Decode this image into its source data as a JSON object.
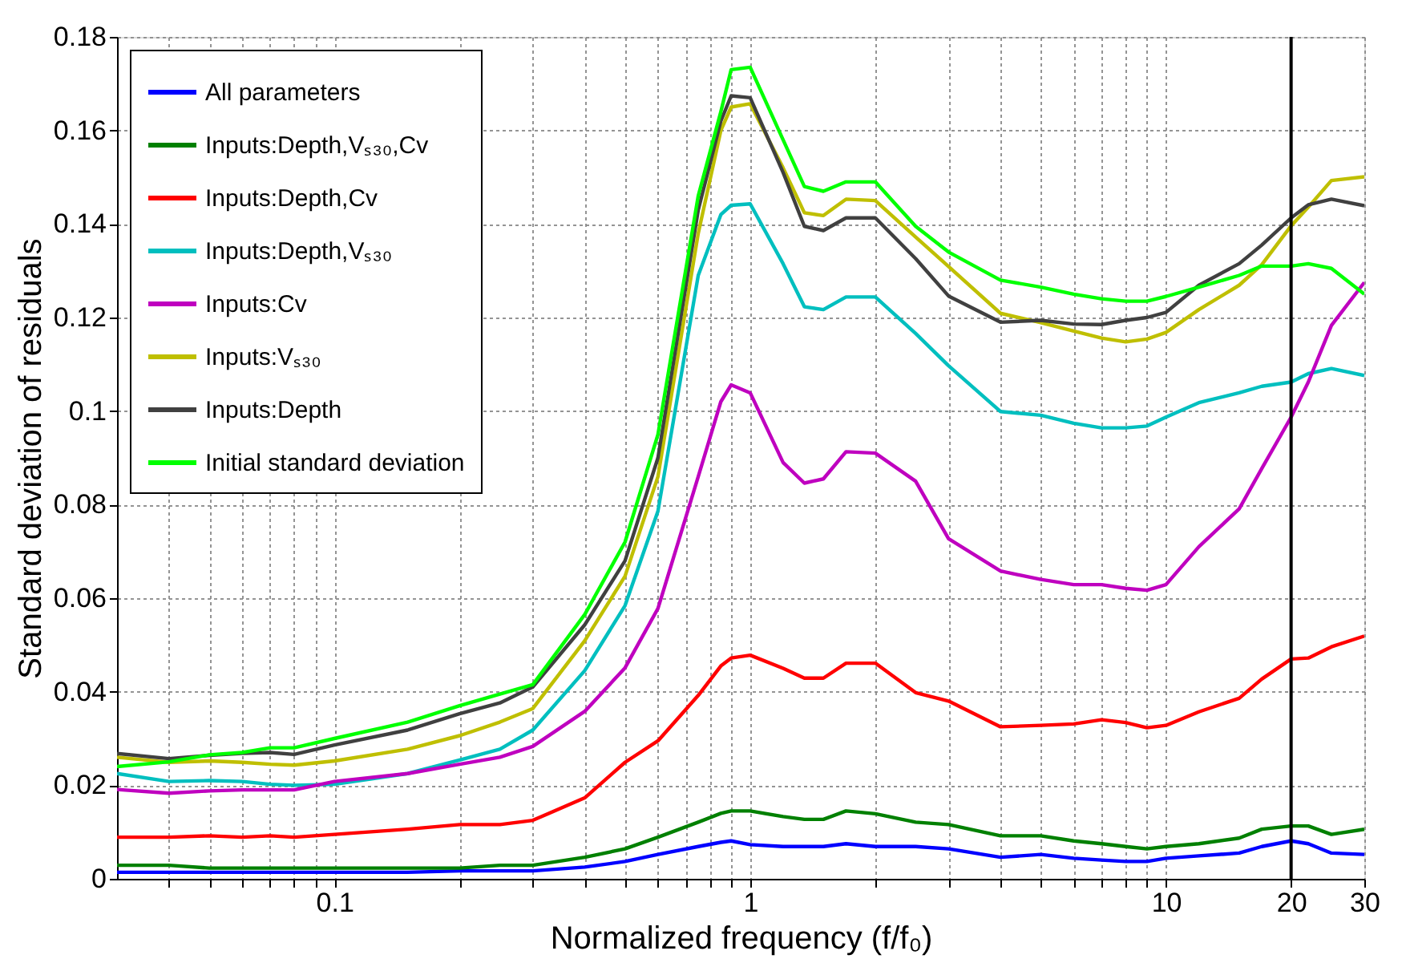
{
  "chart_data": {
    "type": "line",
    "xlabel": "Normalized frequency (f/f₀)",
    "ylabel": "Standard deviation of residuals",
    "log": "x",
    "grid": true,
    "legend": "top left",
    "line_style": "solid",
    "xlim": [
      0.03,
      30
    ],
    "ylim": [
      0,
      0.18
    ],
    "xticks": [
      {
        "value": 0.04,
        "label": null
      },
      {
        "value": 0.05,
        "label": null
      },
      {
        "value": 0.06,
        "label": null
      },
      {
        "value": 0.07,
        "label": null
      },
      {
        "value": 0.08,
        "label": null
      },
      {
        "value": 0.09,
        "label": null
      },
      0.1,
      {
        "value": 0.2,
        "label": null
      },
      {
        "value": 0.3,
        "label": null
      },
      {
        "value": 0.4,
        "label": null
      },
      {
        "value": 0.5,
        "label": null
      },
      {
        "value": 0.6,
        "label": null
      },
      {
        "value": 0.7,
        "label": null
      },
      {
        "value": 0.8,
        "label": null
      },
      {
        "value": 0.9,
        "label": null
      },
      1,
      {
        "value": 2,
        "label": null
      },
      {
        "value": 3,
        "label": null
      },
      {
        "value": 4,
        "label": null
      },
      {
        "value": 5,
        "label": null
      },
      {
        "value": 6,
        "label": null
      },
      {
        "value": 7,
        "label": null
      },
      {
        "value": 8,
        "label": null
      },
      {
        "value": 9,
        "label": null
      },
      10,
      20,
      30
    ],
    "yticks": [
      0,
      0.02,
      0.04,
      0.06,
      0.08,
      0.1,
      0.12,
      0.14,
      0.16,
      0.18
    ],
    "ref_lines": [
      {
        "axis": "x",
        "value": 20,
        "color": "#000000"
      }
    ],
    "x": [
      0.03,
      0.04,
      0.05,
      0.06,
      0.07,
      0.08,
      0.1,
      0.15,
      0.2,
      0.25,
      0.3,
      0.4,
      0.5,
      0.6,
      0.75,
      0.85,
      0.9,
      1,
      1.2,
      1.35,
      1.5,
      1.7,
      2,
      2.5,
      3,
      4,
      5,
      6,
      7,
      8,
      9,
      10,
      12,
      15,
      17,
      20,
      22,
      25,
      30
    ],
    "series": [
      {
        "name": "All parameters",
        "color": "#0000ff",
        "values": [
          0.0014,
          0.0014,
          0.0014,
          0.0014,
          0.0014,
          0.0014,
          0.0014,
          0.0014,
          0.0017,
          0.0017,
          0.0017,
          0.0025,
          0.0037,
          0.0052,
          0.0069,
          0.0078,
          0.0081,
          0.0073,
          0.0069,
          0.0069,
          0.0069,
          0.0075,
          0.0069,
          0.0069,
          0.0064,
          0.0046,
          0.0052,
          0.0044,
          0.004,
          0.0037,
          0.0037,
          0.0044,
          0.0049,
          0.0055,
          0.0069,
          0.0081,
          0.0075,
          0.0055,
          0.0052
        ]
      },
      {
        "name": "Inputs:Depth,Vₛ₃₀,Cv",
        "color": "#008000",
        "values": [
          0.0029,
          0.0029,
          0.0023,
          0.0023,
          0.0023,
          0.0023,
          0.0023,
          0.0023,
          0.0023,
          0.0029,
          0.0029,
          0.0046,
          0.0064,
          0.0089,
          0.0121,
          0.014,
          0.0145,
          0.0145,
          0.0133,
          0.0127,
          0.0127,
          0.0145,
          0.0139,
          0.0121,
          0.0116,
          0.0092,
          0.0092,
          0.0081,
          0.0075,
          0.0069,
          0.0064,
          0.0069,
          0.0075,
          0.0087,
          0.0106,
          0.0113,
          0.0113,
          0.0095,
          0.0106
        ]
      },
      {
        "name": "Inputs:Depth,Cv",
        "color": "#ff0000",
        "values": [
          0.0089,
          0.0089,
          0.0092,
          0.0089,
          0.0092,
          0.0089,
          0.0095,
          0.0106,
          0.0116,
          0.0116,
          0.0125,
          0.0173,
          0.0249,
          0.0295,
          0.0392,
          0.0455,
          0.0472,
          0.0478,
          0.045,
          0.0429,
          0.0429,
          0.0461,
          0.0461,
          0.0398,
          0.038,
          0.0325,
          0.0328,
          0.0331,
          0.034,
          0.0334,
          0.0323,
          0.0328,
          0.0357,
          0.0386,
          0.0427,
          0.047,
          0.0472,
          0.0496,
          0.0519
        ]
      },
      {
        "name": "Inputs:Depth,Vₛ₃₀",
        "color": "#00bfbf",
        "values": [
          0.0225,
          0.0208,
          0.021,
          0.0208,
          0.0202,
          0.02,
          0.0202,
          0.0225,
          0.0254,
          0.0277,
          0.0318,
          0.0445,
          0.0584,
          0.0786,
          0.129,
          0.142,
          0.144,
          0.1443,
          0.1315,
          0.1223,
          0.1217,
          0.1244,
          0.1244,
          0.1166,
          0.1097,
          0.0999,
          0.0991,
          0.0974,
          0.0964,
          0.0964,
          0.0968,
          0.0987,
          0.1018,
          0.1039,
          0.1053,
          0.1062,
          0.108,
          0.1091,
          0.1076
        ]
      },
      {
        "name": "Inputs:Cv",
        "color": "#bf00bf",
        "values": [
          0.0191,
          0.0183,
          0.0188,
          0.019,
          0.019,
          0.019,
          0.0208,
          0.0225,
          0.0245,
          0.026,
          0.0283,
          0.0358,
          0.0451,
          0.0578,
          0.086,
          0.102,
          0.1056,
          0.1039,
          0.089,
          0.0846,
          0.0855,
          0.0913,
          0.091,
          0.085,
          0.0727,
          0.0658,
          0.064,
          0.0629,
          0.0629,
          0.0621,
          0.0617,
          0.0629,
          0.071,
          0.0791,
          0.0877,
          0.0987,
          0.1062,
          0.1183,
          0.1275
        ]
      },
      {
        "name": "Inputs:Vₛ₃₀",
        "color": "#bfbf00",
        "values": [
          0.026,
          0.0249,
          0.0252,
          0.0249,
          0.0245,
          0.0243,
          0.0252,
          0.0277,
          0.0306,
          0.0335,
          0.0364,
          0.0509,
          0.0647,
          0.086,
          0.138,
          0.16,
          0.165,
          0.1657,
          0.152,
          0.1424,
          0.1418,
          0.1453,
          0.145,
          0.1372,
          0.1309,
          0.1209,
          0.1189,
          0.1171,
          0.1156,
          0.1148,
          0.1154,
          0.1168,
          0.1217,
          0.1269,
          0.1313,
          0.1396,
          0.1436,
          0.1493,
          0.1501
        ]
      },
      {
        "name": "Inputs:Depth",
        "color": "#404040",
        "values": [
          0.0268,
          0.0257,
          0.0264,
          0.0268,
          0.027,
          0.0266,
          0.0286,
          0.0318,
          0.0353,
          0.0376,
          0.041,
          0.0543,
          0.068,
          0.09,
          0.143,
          0.162,
          0.1674,
          0.167,
          0.151,
          0.1395,
          0.1386,
          0.1413,
          0.1413,
          0.1326,
          0.1246,
          0.119,
          0.1194,
          0.1186,
          0.1185,
          0.1194,
          0.12,
          0.1211,
          0.1269,
          0.1315,
          0.1355,
          0.1413,
          0.1441,
          0.1453,
          0.1439
        ]
      },
      {
        "name": "Initial standard deviation",
        "color": "#00ff00",
        "values": [
          0.024,
          0.025,
          0.0265,
          0.027,
          0.028,
          0.028,
          0.03,
          0.0335,
          0.037,
          0.0395,
          0.0415,
          0.0565,
          0.072,
          0.095,
          0.146,
          0.164,
          0.173,
          0.1735,
          0.158,
          0.148,
          0.147,
          0.149,
          0.149,
          0.1395,
          0.134,
          0.128,
          0.1265,
          0.125,
          0.124,
          0.1235,
          0.1235,
          0.1245,
          0.1265,
          0.129,
          0.131,
          0.131,
          0.1315,
          0.1305,
          0.125
        ]
      }
    ]
  }
}
